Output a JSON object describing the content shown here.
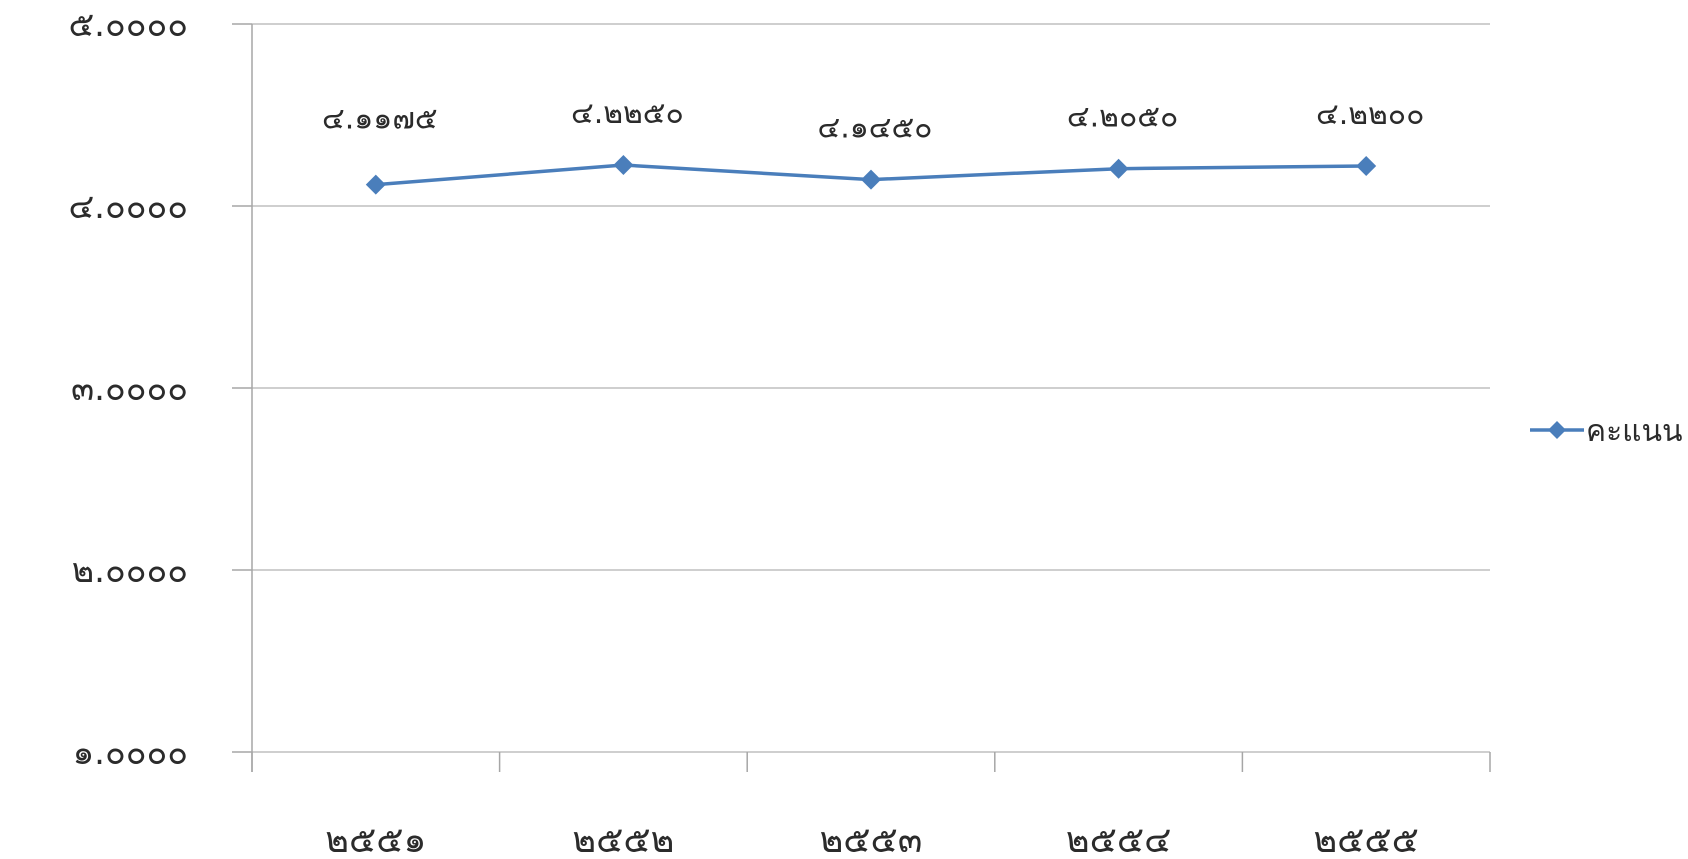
{
  "chart_data": {
    "type": "line",
    "categories": [
      "๒๕๕๑",
      "๒๕๕๒",
      "๒๕๕๓",
      "๒๕๕๔",
      "๒๕๕๕"
    ],
    "series": [
      {
        "name": "คะแนน",
        "values": [
          4.1175,
          4.225,
          4.145,
          4.205,
          4.22
        ],
        "data_labels": [
          "๔.๑๑๗๕",
          "๔.๒๒๕๐",
          "๔.๑๔๕๐",
          "๔.๒๐๕๐",
          "๔.๒๒๐๐"
        ],
        "color": "#4a7ebb"
      }
    ],
    "y_ticks": [
      5,
      4,
      3,
      2,
      1
    ],
    "y_tick_labels": [
      "๕.๐๐๐๐",
      "๔.๐๐๐๐",
      "๓.๐๐๐๐",
      "๒.๐๐๐๐",
      "๑.๐๐๐๐"
    ],
    "ylim": [
      1,
      5
    ],
    "grid": true,
    "legend_position": "right",
    "marker": "diamond"
  }
}
